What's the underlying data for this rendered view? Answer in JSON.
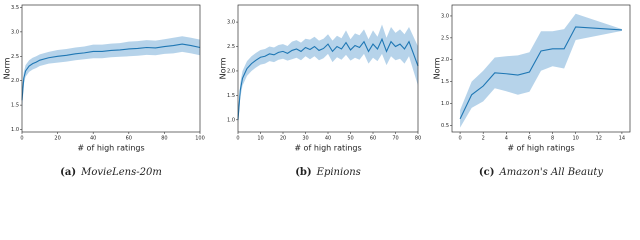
{
  "chart_data": [
    {
      "type": "line",
      "caption": {
        "label": "(a)",
        "text": "MovieLens-20m"
      },
      "x_label": "# of high ratings",
      "y_label": "Norm",
      "x": [
        0,
        1,
        2,
        4,
        6,
        8,
        10,
        15,
        20,
        25,
        30,
        35,
        40,
        45,
        50,
        55,
        60,
        65,
        70,
        75,
        80,
        85,
        90,
        95,
        100
      ],
      "series": [
        {
          "color": "#1f77b4",
          "band_color": "#a9cbe6",
          "values": [
            1.6,
            2.05,
            2.2,
            2.3,
            2.35,
            2.38,
            2.42,
            2.47,
            2.5,
            2.52,
            2.55,
            2.57,
            2.6,
            2.6,
            2.62,
            2.63,
            2.65,
            2.66,
            2.68,
            2.67,
            2.7,
            2.72,
            2.75,
            2.72,
            2.68
          ],
          "band": [
            0.25,
            0.12,
            0.12,
            0.12,
            0.12,
            0.12,
            0.12,
            0.12,
            0.13,
            0.13,
            0.13,
            0.13,
            0.14,
            0.14,
            0.14,
            0.14,
            0.15,
            0.15,
            0.15,
            0.15,
            0.15,
            0.16,
            0.16,
            0.16,
            0.16
          ]
        }
      ],
      "xlim": [
        0,
        100
      ],
      "xticks": [
        0,
        20,
        40,
        60,
        80,
        100
      ],
      "ylim": [
        0.95,
        3.55
      ],
      "yticks": [
        {
          "value": 1,
          "label": "1.0"
        },
        1.5,
        {
          "value": 2,
          "label": "2.0"
        },
        2.5,
        {
          "value": 3,
          "label": "3.0"
        },
        3.5
      ]
    },
    {
      "type": "line",
      "caption": {
        "label": "(b)",
        "text": "Epinions"
      },
      "x_label": "# of high ratings",
      "y_label": "Norm",
      "x": [
        0,
        1,
        2,
        3,
        4,
        6,
        8,
        10,
        12,
        14,
        16,
        18,
        20,
        22,
        24,
        26,
        28,
        30,
        32,
        34,
        36,
        38,
        40,
        42,
        44,
        46,
        48,
        50,
        52,
        54,
        56,
        58,
        60,
        62,
        64,
        66,
        68,
        70,
        72,
        74,
        76,
        78,
        80
      ],
      "series": [
        {
          "color": "#1f77b4",
          "band_color": "#a9cbe6",
          "values": [
            1.0,
            1.6,
            1.85,
            1.95,
            2.05,
            2.15,
            2.22,
            2.28,
            2.3,
            2.35,
            2.33,
            2.38,
            2.4,
            2.36,
            2.42,
            2.45,
            2.4,
            2.48,
            2.44,
            2.5,
            2.42,
            2.46,
            2.55,
            2.4,
            2.5,
            2.45,
            2.58,
            2.43,
            2.52,
            2.48,
            2.6,
            2.4,
            2.55,
            2.45,
            2.65,
            2.4,
            2.6,
            2.5,
            2.55,
            2.45,
            2.6,
            2.35,
            2.1
          ],
          "band": [
            0.1,
            0.15,
            0.15,
            0.15,
            0.15,
            0.15,
            0.15,
            0.15,
            0.15,
            0.15,
            0.15,
            0.15,
            0.15,
            0.15,
            0.18,
            0.18,
            0.18,
            0.18,
            0.2,
            0.2,
            0.2,
            0.2,
            0.2,
            0.22,
            0.22,
            0.22,
            0.25,
            0.22,
            0.25,
            0.25,
            0.25,
            0.25,
            0.28,
            0.25,
            0.3,
            0.28,
            0.3,
            0.28,
            0.3,
            0.3,
            0.3,
            0.35,
            0.4
          ]
        }
      ],
      "xlim": [
        0,
        80
      ],
      "xticks": [
        0,
        10,
        20,
        30,
        40,
        50,
        60,
        70,
        80
      ],
      "ylim": [
        0.75,
        3.35
      ],
      "yticks": [
        {
          "value": 1,
          "label": "1.0"
        },
        1.5,
        {
          "value": 2,
          "label": "2.0"
        },
        2.5,
        {
          "value": 3,
          "label": "3.0"
        }
      ]
    },
    {
      "type": "line",
      "caption": {
        "label": "(c)",
        "text": "Amazon's All Beauty"
      },
      "x_label": "# of high ratings",
      "y_label": "Norm",
      "x": [
        0,
        1,
        2,
        3,
        4,
        5,
        6,
        7,
        8,
        9,
        10,
        14
      ],
      "series": [
        {
          "color": "#1f77b4",
          "band_color": "#a9cbe6",
          "values": [
            0.65,
            1.2,
            1.4,
            1.7,
            1.68,
            1.65,
            1.72,
            2.2,
            2.25,
            2.25,
            2.75,
            2.68
          ],
          "band": [
            0.2,
            0.3,
            0.35,
            0.35,
            0.4,
            0.45,
            0.45,
            0.45,
            0.4,
            0.45,
            0.3,
            0.02
          ]
        }
      ],
      "xlim": [
        -0.7,
        14.7
      ],
      "xticks": [
        0,
        2,
        4,
        6,
        8,
        10,
        12,
        14
      ],
      "ylim": [
        0.35,
        3.25
      ],
      "yticks": [
        0.5,
        {
          "value": 1,
          "label": "1.0"
        },
        1.5,
        {
          "value": 2,
          "label": "2.0"
        },
        2.5,
        {
          "value": 3,
          "label": "3.0"
        }
      ]
    }
  ]
}
